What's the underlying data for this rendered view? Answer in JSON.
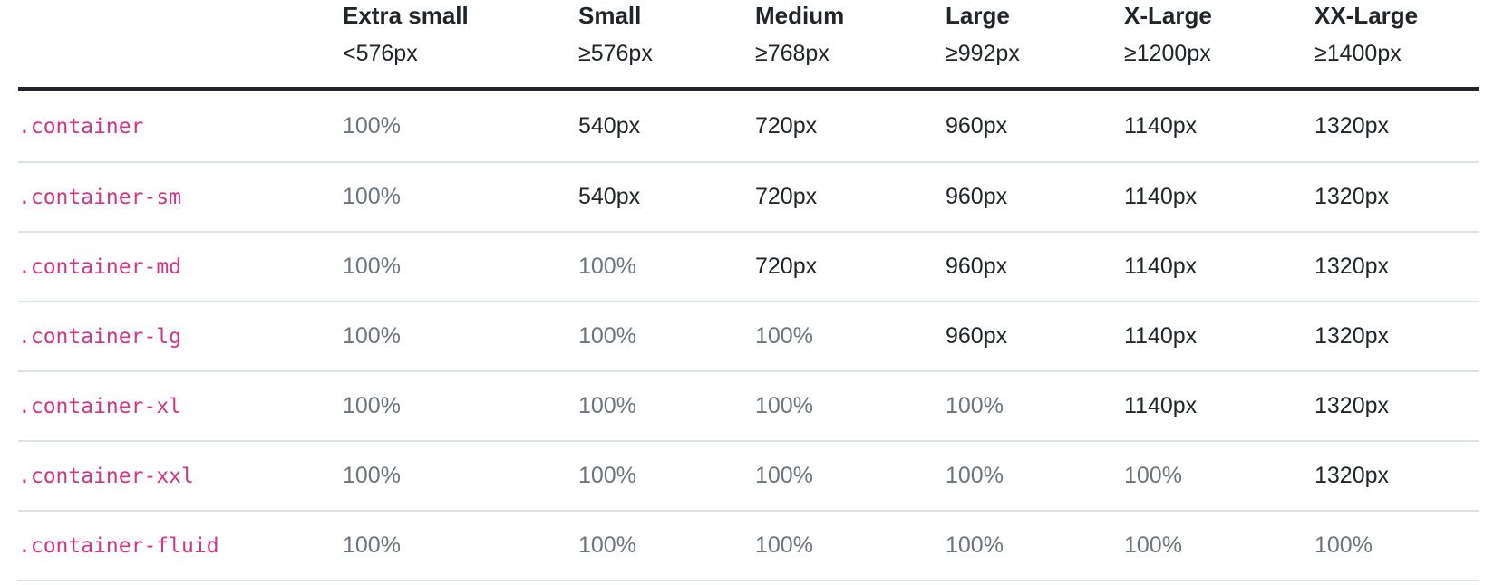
{
  "table": {
    "columns": [
      {
        "name": "",
        "range": ""
      },
      {
        "name": "Extra small",
        "range": "<576px"
      },
      {
        "name": "Small",
        "range": "≥576px"
      },
      {
        "name": "Medium",
        "range": "≥768px"
      },
      {
        "name": "Large",
        "range": "≥992px"
      },
      {
        "name": "X-Large",
        "range": "≥1200px"
      },
      {
        "name": "XX-Large",
        "range": "≥1400px"
      }
    ],
    "rows": [
      {
        "class": ".container",
        "values": [
          "100%",
          "540px",
          "720px",
          "960px",
          "1140px",
          "1320px"
        ]
      },
      {
        "class": ".container-sm",
        "values": [
          "100%",
          "540px",
          "720px",
          "960px",
          "1140px",
          "1320px"
        ]
      },
      {
        "class": ".container-md",
        "values": [
          "100%",
          "100%",
          "720px",
          "960px",
          "1140px",
          "1320px"
        ]
      },
      {
        "class": ".container-lg",
        "values": [
          "100%",
          "100%",
          "100%",
          "960px",
          "1140px",
          "1320px"
        ]
      },
      {
        "class": ".container-xl",
        "values": [
          "100%",
          "100%",
          "100%",
          "100%",
          "1140px",
          "1320px"
        ]
      },
      {
        "class": ".container-xxl",
        "values": [
          "100%",
          "100%",
          "100%",
          "100%",
          "100%",
          "1320px"
        ]
      },
      {
        "class": ".container-fluid",
        "values": [
          "100%",
          "100%",
          "100%",
          "100%",
          "100%",
          "100%"
        ]
      }
    ]
  },
  "colors": {
    "class_name": "#d63384",
    "text_primary": "#212529",
    "text_muted": "#6c757d",
    "header_rule": "#212529",
    "row_rule": "#dee2e6"
  }
}
